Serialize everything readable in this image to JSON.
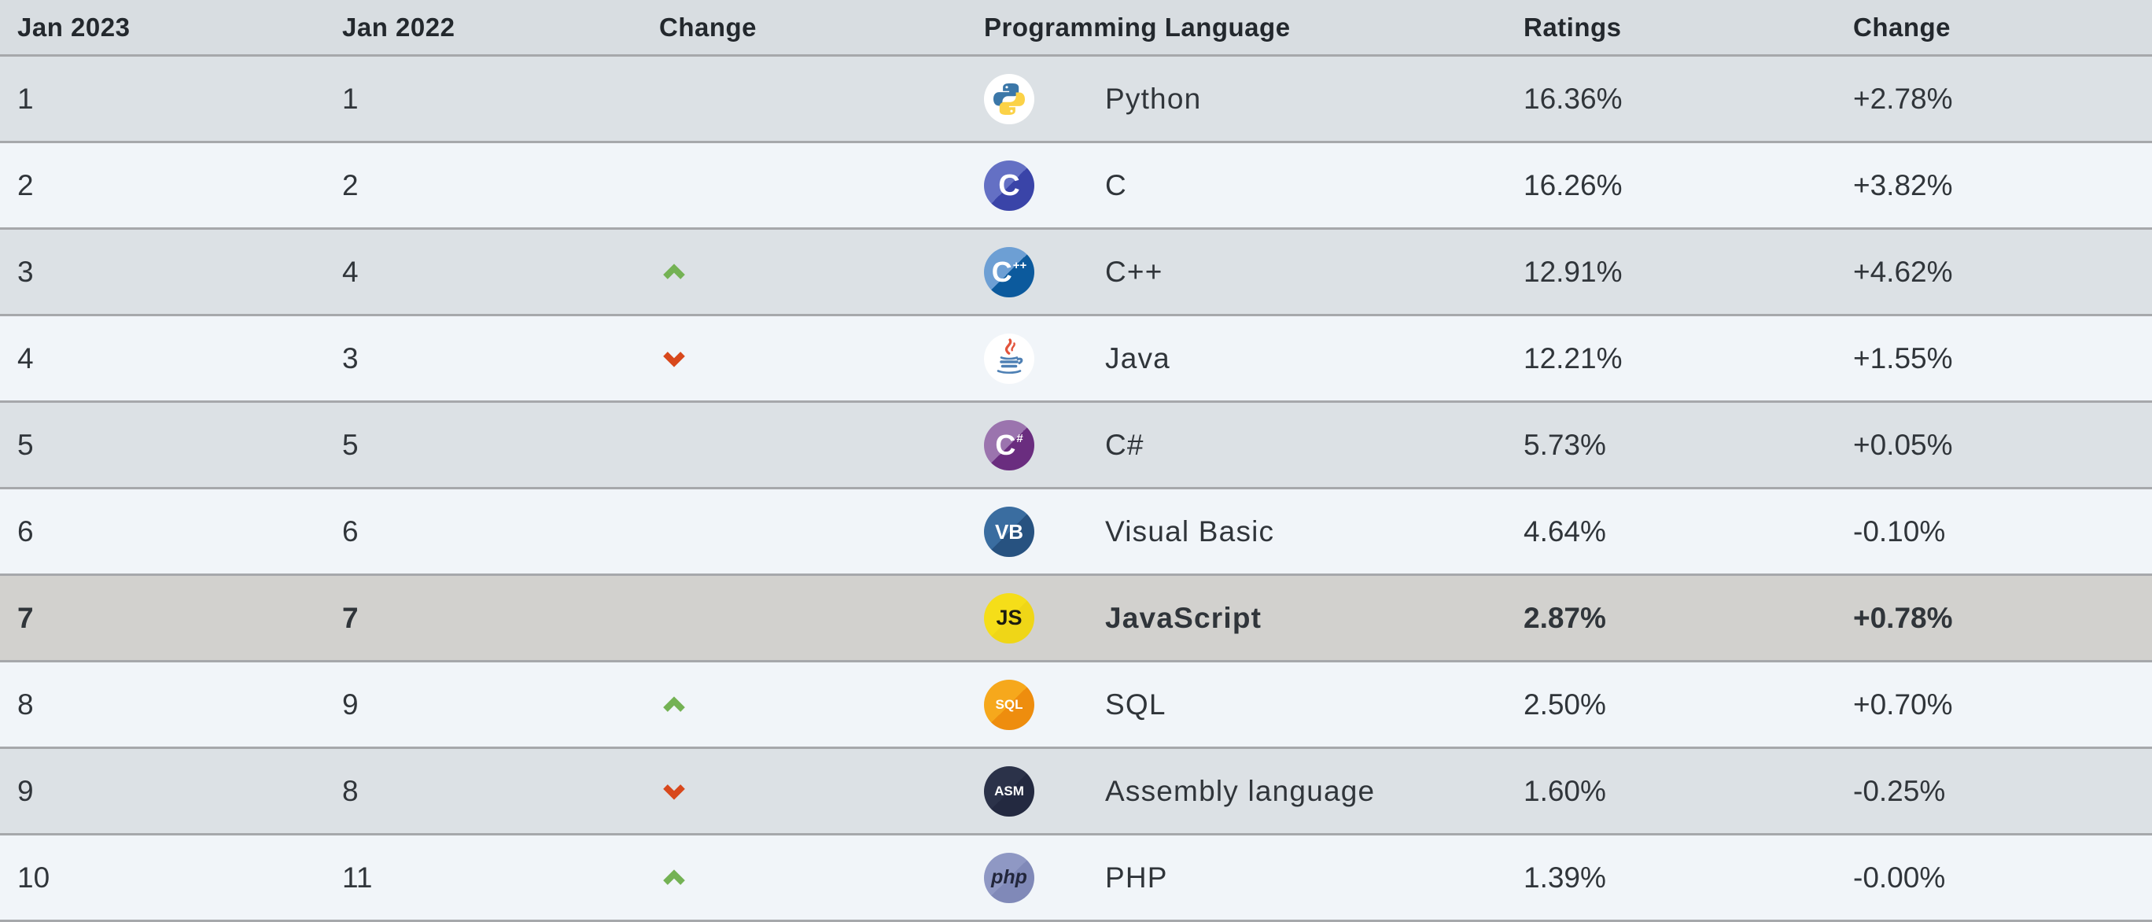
{
  "header": {
    "col_rank_now": "Jan 2023",
    "col_rank_prev": "Jan 2022",
    "col_trend": "Change",
    "col_language": "Programming Language",
    "col_ratings": "Ratings",
    "col_change": "Change"
  },
  "colors": {
    "header_bg": "#d8dde1",
    "header_text": "#23282d",
    "row_odd": "#dce1e5",
    "row_even": "#f1f5f9",
    "highlight": "#d2d1ce",
    "divider": "#a6a8ab",
    "text": "#30353a",
    "up_arrow": "#74b254",
    "down_arrow": "#d8481c"
  },
  "rows": [
    {
      "rank_now": "1",
      "rank_prev": "1",
      "trend": "none",
      "language": "Python",
      "ratings": "16.36%",
      "change": "+2.78%",
      "highlight": false,
      "icon": {
        "kind": "python",
        "name": "python-icon"
      }
    },
    {
      "rank_now": "2",
      "rank_prev": "2",
      "trend": "none",
      "language": "C",
      "ratings": "16.26%",
      "change": "+3.82%",
      "highlight": false,
      "icon": {
        "kind": "badge",
        "name": "c-icon",
        "text": "C",
        "sub": "",
        "bg_top": "#6470c4",
        "bg_bottom": "#3a44a8",
        "fg": "#ffffff",
        "size": "38",
        "weight": "700",
        "style": "normal"
      }
    },
    {
      "rank_now": "3",
      "rank_prev": "4",
      "trend": "up",
      "language": "C++",
      "ratings": "12.91%",
      "change": "+4.62%",
      "highlight": false,
      "icon": {
        "kind": "badge",
        "name": "cpp-icon",
        "text": "C",
        "sub": "++",
        "bg_top": "#6d9fd4",
        "bg_bottom": "#0c5a9d",
        "fg": "#ffffff",
        "size": "36",
        "weight": "700",
        "style": "normal"
      }
    },
    {
      "rank_now": "4",
      "rank_prev": "3",
      "trend": "down",
      "language": "Java",
      "ratings": "12.21%",
      "change": "+1.55%",
      "highlight": false,
      "icon": {
        "kind": "java",
        "name": "java-icon"
      }
    },
    {
      "rank_now": "5",
      "rank_prev": "5",
      "trend": "none",
      "language": "C#",
      "ratings": "5.73%",
      "change": "+0.05%",
      "highlight": false,
      "icon": {
        "kind": "badge",
        "name": "csharp-icon",
        "text": "C",
        "sub": "#",
        "bg_top": "#9b74ae",
        "bg_bottom": "#6a2d7f",
        "fg": "#ffffff",
        "size": "36",
        "weight": "700",
        "style": "normal"
      }
    },
    {
      "rank_now": "6",
      "rank_prev": "6",
      "trend": "none",
      "language": "Visual Basic",
      "ratings": "4.64%",
      "change": "-0.10%",
      "highlight": false,
      "icon": {
        "kind": "badge",
        "name": "visual-basic-icon",
        "text": "VB",
        "sub": "",
        "bg_top": "#3a6da0",
        "bg_bottom": "#275280",
        "fg": "#ffffff",
        "size": "26",
        "weight": "700",
        "style": "normal"
      }
    },
    {
      "rank_now": "7",
      "rank_prev": "7",
      "trend": "none",
      "language": "JavaScript",
      "ratings": "2.87%",
      "change": "+0.78%",
      "highlight": true,
      "icon": {
        "kind": "badge",
        "name": "javascript-icon",
        "text": "JS",
        "sub": "",
        "bg_top": "#f5de19",
        "bg_bottom": "#efd617",
        "fg": "#1b1b10",
        "size": "27",
        "weight": "800",
        "style": "normal"
      }
    },
    {
      "rank_now": "8",
      "rank_prev": "9",
      "trend": "up",
      "language": "SQL",
      "ratings": "2.50%",
      "change": "+0.70%",
      "highlight": false,
      "icon": {
        "kind": "badge",
        "name": "sql-icon",
        "text": "SQL",
        "sub": "",
        "bg_top": "#f6a81c",
        "bg_bottom": "#ee8d0e",
        "fg": "#ffffff",
        "size": "17",
        "weight": "700",
        "style": "normal"
      }
    },
    {
      "rank_now": "9",
      "rank_prev": "8",
      "trend": "down",
      "language": "Assembly language",
      "ratings": "1.60%",
      "change": "-0.25%",
      "highlight": false,
      "icon": {
        "kind": "badge",
        "name": "assembly-icon",
        "text": "ASM",
        "sub": "",
        "bg_top": "#2b3249",
        "bg_bottom": "#232940",
        "fg": "#ffffff",
        "size": "17",
        "weight": "700",
        "style": "normal"
      }
    },
    {
      "rank_now": "10",
      "rank_prev": "11",
      "trend": "up",
      "language": "PHP",
      "ratings": "1.39%",
      "change": "-0.00%",
      "highlight": false,
      "icon": {
        "kind": "badge",
        "name": "php-icon",
        "text": "php",
        "sub": "",
        "bg_top": "#8f98c4",
        "bg_bottom": "#8089b8",
        "fg": "#22263b",
        "size": "25",
        "weight": "700",
        "style": "italic"
      }
    }
  ]
}
